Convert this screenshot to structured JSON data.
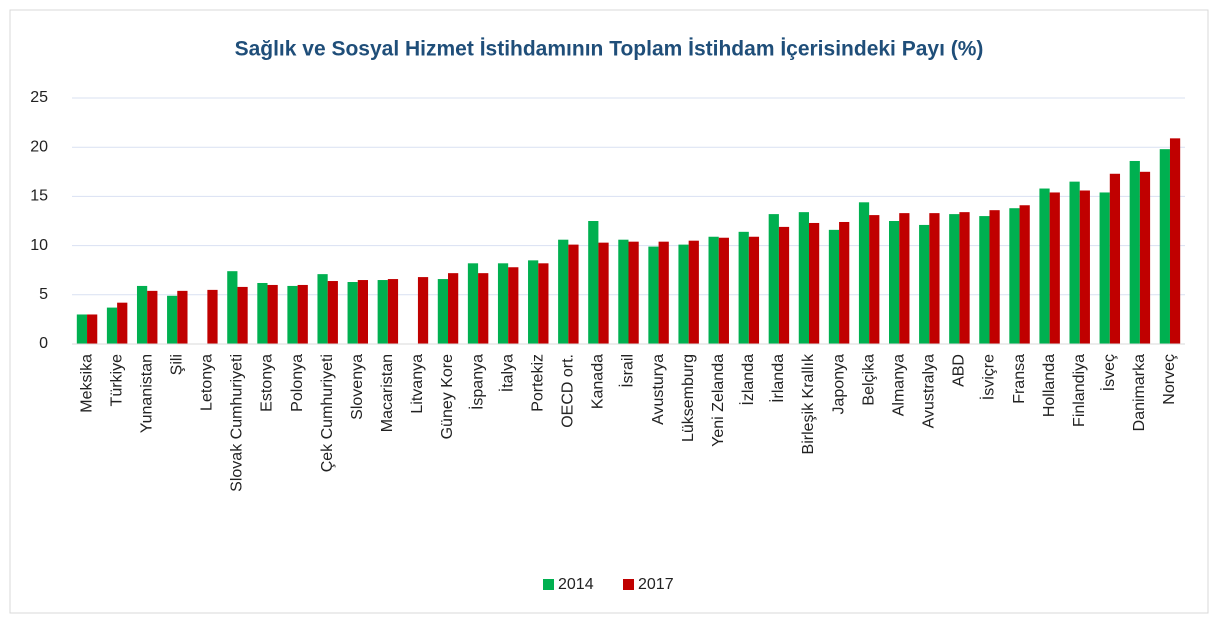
{
  "chart_data": {
    "type": "bar",
    "title": "Sağlık ve Sosyal Hizmet İstihdamının Toplam İstihdam İçerisindeki Payı (%)",
    "categories": [
      "Meksika",
      "Türkiye",
      "Yunanistan",
      "Şili",
      "Letonya",
      "Slovak Cumhuriyeti",
      "Estonya",
      "Polonya",
      "Çek Cumhuriyeti",
      "Slovenya",
      "Macaristan",
      "Litvanya",
      "Güney Kore",
      "İspanya",
      "İtalya",
      "Portekiz",
      "OECD ort.",
      "Kanada",
      "İsrail",
      "Avusturya",
      "Lüksemburg",
      "Yeni Zelanda",
      "İzlanda",
      "İrlanda",
      "Birleşik Krallık",
      "Japonya",
      "Belçika",
      "Almanya",
      "Avustralya",
      "ABD",
      "İsviçre",
      "Fransa",
      "Hollanda",
      "Finlandiya",
      "İsveç",
      "Danimarka",
      "Norveç"
    ],
    "series": [
      {
        "name": "2014",
        "color": "#00b050",
        "values": [
          3.0,
          3.7,
          5.9,
          4.9,
          null,
          7.4,
          6.2,
          5.9,
          7.1,
          6.3,
          6.5,
          null,
          6.6,
          8.2,
          8.2,
          8.5,
          10.6,
          12.5,
          10.6,
          9.9,
          10.1,
          10.9,
          11.4,
          13.2,
          13.4,
          11.6,
          14.4,
          12.5,
          12.1,
          13.2,
          13.0,
          13.8,
          15.8,
          16.5,
          15.4,
          18.6,
          19.8
        ]
      },
      {
        "name": "2017",
        "color": "#c00000",
        "values": [
          3.0,
          4.2,
          5.4,
          5.4,
          5.5,
          5.8,
          6.0,
          6.0,
          6.4,
          6.5,
          6.6,
          6.8,
          7.2,
          7.2,
          7.8,
          8.2,
          10.1,
          10.3,
          10.4,
          10.4,
          10.5,
          10.8,
          10.9,
          11.9,
          12.3,
          12.4,
          13.1,
          13.3,
          13.3,
          13.4,
          13.6,
          14.1,
          15.4,
          15.6,
          17.3,
          17.5,
          20.9
        ]
      }
    ],
    "ylim": [
      0,
      25
    ],
    "yticks": [
      0,
      5,
      10,
      15,
      20,
      25
    ],
    "grid": true,
    "legend": "bottom"
  }
}
